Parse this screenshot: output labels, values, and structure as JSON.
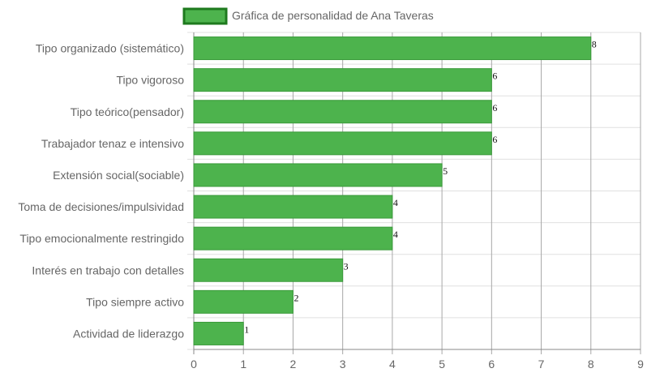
{
  "chart_data": {
    "type": "bar",
    "orientation": "horizontal",
    "legend": {
      "label": "Gráfica de personalidad de Ana Taveras",
      "position": "top"
    },
    "categories": [
      "Tipo organizado (sistemático)",
      "Tipo vigoroso",
      "Tipo teórico(pensador)",
      "Trabajador tenaz e intensivo",
      "Extensión social(sociable)",
      "Toma de decisiones/impulsividad",
      "Tipo emocionalmente restringido",
      "Interés en trabajo con detalles",
      "Tipo siempre activo",
      "Actividad de liderazgo"
    ],
    "values": [
      8,
      6,
      6,
      6,
      5,
      4,
      4,
      3,
      2,
      1
    ],
    "data_labels": [
      "8",
      "6",
      "6",
      "6",
      "5",
      "4",
      "4",
      "3",
      "2",
      "1"
    ],
    "xlim": [
      0,
      9
    ],
    "x_ticks": [
      "0",
      "1",
      "2",
      "3",
      "4",
      "5",
      "6",
      "7",
      "8",
      "9"
    ],
    "grid": true,
    "colors": {
      "bar_fill": "#4db34d",
      "bar_border": "#3a9a3a",
      "legend_border": "#1e7a1e",
      "grid": "#e0e0e0",
      "grid_vertical": "#a8a8a8",
      "axis": "#888888",
      "text": "#666666"
    }
  }
}
